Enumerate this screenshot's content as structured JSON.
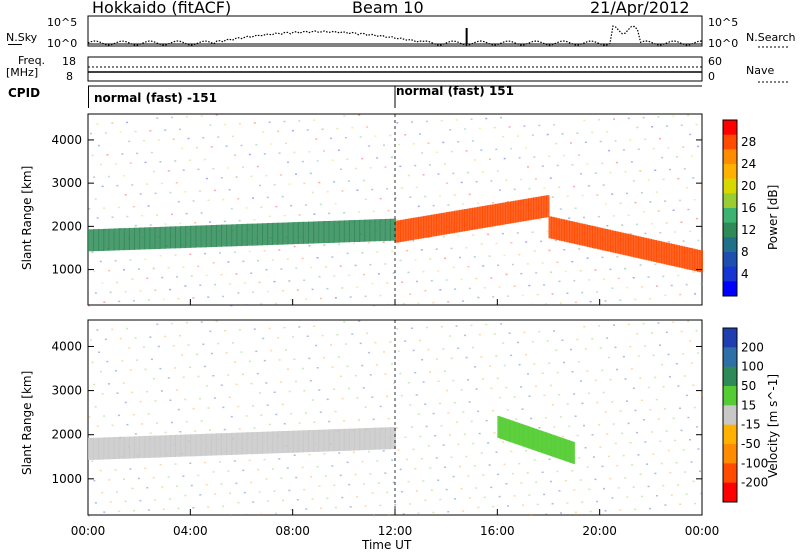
{
  "header": {
    "station": "Hokkaido (fitACF)",
    "beam": "Beam 10",
    "date": "21/Apr/2012"
  },
  "top_panel": {
    "left_label": "N.Sky",
    "right_label": "N.Search",
    "left_ticks": [
      "10^5",
      "10^0"
    ],
    "right_ticks": [
      "10^5",
      "10^0"
    ]
  },
  "freq_panel": {
    "left_label_1": "Freq.",
    "left_label_2": "[MHz]",
    "right_label": "Nave",
    "left_ticks": [
      "18",
      "8"
    ],
    "right_ticks": [
      "60",
      "0"
    ]
  },
  "cpid": {
    "label": "CPID",
    "segments": [
      {
        "text": "normal (fast) -151",
        "start_hour": 0,
        "end_hour": 12
      },
      {
        "text": "normal (fast) 151",
        "start_hour": 12,
        "end_hour": 24
      }
    ]
  },
  "colorbars": {
    "power": {
      "title": "Power [dB]",
      "ticks": [
        "28",
        "24",
        "20",
        "16",
        "12",
        "8",
        "4"
      ],
      "colors": [
        "#ff0000",
        "#ff4a00",
        "#ff8c00",
        "#ffb000",
        "#d8d800",
        "#9acd32",
        "#3cb371",
        "#2e8b57",
        "#20708a",
        "#1c4fb0",
        "#1636d4",
        "#0000ff"
      ]
    },
    "velocity": {
      "title": "Velocity [m s^-1]",
      "ticks": [
        "200",
        "100",
        "50",
        "15",
        "-15",
        "-50",
        "-100",
        "-200"
      ],
      "colors": [
        "#1f3fb0",
        "#2f6fa8",
        "#2e8b57",
        "#55cc33",
        "#c8c8c8",
        "#ffb000",
        "#ff8c00",
        "#ff4a00",
        "#ff0000"
      ]
    }
  },
  "chart_data": [
    {
      "type": "heatmap",
      "title": "",
      "xlabel": "Time UT",
      "ylabel": "Slant Range [km]",
      "x_ticks": [
        "00:00",
        "04:00",
        "08:00",
        "12:00",
        "16:00",
        "20:00",
        "00:00"
      ],
      "y_ticks": [
        "1000",
        "2000",
        "3000",
        "4000"
      ],
      "xlim_hours": [
        0,
        24
      ],
      "ylim_km": [
        180,
        4600
      ],
      "z_label": "Power [dB]",
      "zlim": [
        0,
        30
      ],
      "echo_bands": [
        {
          "start_hour": 0,
          "end_hour": 12,
          "range_km_start": 1700,
          "range_km_end": 1950,
          "power_db": 10
        },
        {
          "start_hour": 12,
          "end_hour": 18,
          "range_km_start": 1900,
          "range_km_end": 2500,
          "power_db": 28
        },
        {
          "start_hour": 18,
          "end_hour": 24,
          "range_km_start": 2000,
          "range_km_end": 1200,
          "power_db": 26
        }
      ]
    },
    {
      "type": "heatmap",
      "title": "",
      "xlabel": "Time UT",
      "ylabel": "Slant Range [km]",
      "x_ticks": [
        "00:00",
        "04:00",
        "08:00",
        "12:00",
        "16:00",
        "20:00",
        "00:00"
      ],
      "y_ticks": [
        "1000",
        "2000",
        "3000",
        "4000"
      ],
      "xlim_hours": [
        0,
        24
      ],
      "ylim_km": [
        180,
        4600
      ],
      "z_label": "Velocity [m s^-1]",
      "zlim": [
        -200,
        200
      ],
      "echo_bands": [
        {
          "start_hour": 0,
          "end_hour": 12,
          "range_km_start": 1700,
          "range_km_end": 1950,
          "velocity": 0
        },
        {
          "start_hour": 16,
          "end_hour": 19,
          "range_km_start": 2200,
          "range_km_end": 1600,
          "velocity": 40
        }
      ]
    }
  ],
  "footer": {
    "x_ticks": [
      "00:00",
      "04:00",
      "08:00",
      "12:00",
      "16:00",
      "20:00",
      "00:00"
    ],
    "xlabel": "Time UT"
  }
}
